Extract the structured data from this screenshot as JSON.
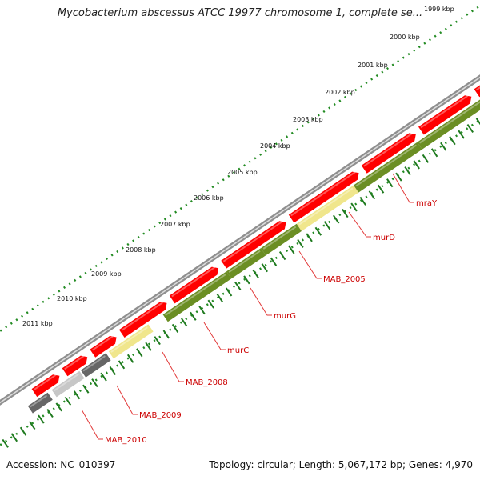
{
  "title": "Mycobacterium abscessus ATCC 19977 chromosome 1, complete se...",
  "footer": {
    "accession": "Accession: NC_010397",
    "summary": "Topology: circular; Length: 5,067,172 bp; Genes: 4,970"
  },
  "colors": {
    "backbone": "#8f8f8f",
    "forward_cds": "#ff0000",
    "reverse_cds": "#6b8e23",
    "hypothetical": "#f0e68c",
    "grey_a": "#666666",
    "grey_b": "#c7c7c7",
    "ruler": "#228b22",
    "label": "#cc0000"
  },
  "ruler": {
    "kbp_labels": [
      "1999 kbp",
      "2000 kbp",
      "2001 kbp",
      "2002 kbp",
      "2003 kbp",
      "2004 kbp",
      "2005 kbp",
      "2006 kbp",
      "2007 kbp",
      "2008 kbp",
      "2009 kbp",
      "2010 kbp",
      "2011 kbp"
    ]
  },
  "genes": [
    {
      "name": "mraY",
      "color": "reverse_cds"
    },
    {
      "name": "murD",
      "color": "reverse_cds"
    },
    {
      "name": "MAB_2005",
      "color": "hypothetical"
    },
    {
      "name": "murG",
      "color": "reverse_cds"
    },
    {
      "name": "murC",
      "color": "reverse_cds"
    },
    {
      "name": "MAB_2008",
      "color": "reverse_cds"
    },
    {
      "name": "MAB_2009",
      "color": "hypothetical"
    },
    {
      "name": "MAB_2010",
      "color": "grey_a"
    }
  ]
}
